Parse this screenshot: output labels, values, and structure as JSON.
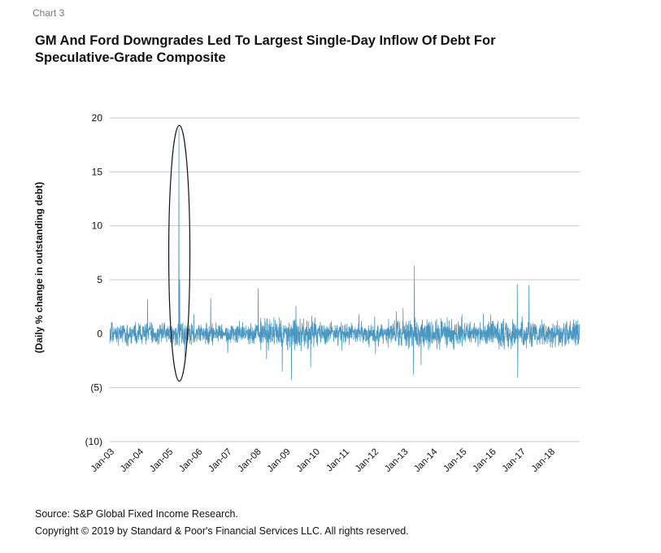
{
  "header": {
    "chart_label": "Chart 3",
    "title": "GM And Ford Downgrades Led To Largest Single-Day Inflow Of Debt For Speculative-Grade Composite"
  },
  "footer": {
    "source": "Source: S&P Global Fixed Income Research.",
    "copyright": "Copyright © 2019 by Standard & Poor's Financial Services LLC. All rights reserved."
  },
  "colors": {
    "series": "#4a98c2",
    "grid": "#c8c8c8"
  },
  "chart_data": {
    "type": "line",
    "title": "GM And Ford Downgrades Led To Largest Single-Day Inflow Of Debt For Speculative-Grade Composite",
    "xlabel": "",
    "ylabel": "(Daily % change in outstanding debt)",
    "ylim": [
      -10,
      20
    ],
    "yticks": [
      20,
      15,
      10,
      5,
      0,
      -5,
      -10
    ],
    "ytick_labels": [
      "20",
      "15",
      "10",
      "5",
      "0",
      "(5)",
      "(10)"
    ],
    "xtick_labels": [
      "Jan-03",
      "Jan-04",
      "Jan-05",
      "Jan-06",
      "Jan-07",
      "Jan-08",
      "Jan-09",
      "Jan-10",
      "Jan-11",
      "Jan-12",
      "Jan-13",
      "Jan-14",
      "Jan-15",
      "Jan-16",
      "Jan-17",
      "Jan-18"
    ],
    "xlim": [
      "2003-01-01",
      "2018-12-31"
    ],
    "grid": "horizontal",
    "annotation": "ellipse highlighting spike around May-2005",
    "notable_points": [
      {
        "x": "2005-05-10",
        "y": 19.0
      },
      {
        "x": "2005-05-20",
        "y": 5.0
      },
      {
        "x": "2013-05-15",
        "y": 6.3
      },
      {
        "x": "2016-11-15",
        "y": 4.6
      },
      {
        "x": "2017-04-10",
        "y": 4.5
      },
      {
        "x": "2008-01-20",
        "y": 4.2
      },
      {
        "x": "2009-03-10",
        "y": -4.3
      },
      {
        "x": "2008-11-15",
        "y": -3.5
      },
      {
        "x": "2013-05-05",
        "y": -3.8
      },
      {
        "x": "2016-11-20",
        "y": -4.1
      },
      {
        "x": "2006-06-10",
        "y": 3.3
      },
      {
        "x": "2004-04-15",
        "y": 3.2
      }
    ],
    "typical_range": [
      -1.5,
      1.5
    ]
  }
}
